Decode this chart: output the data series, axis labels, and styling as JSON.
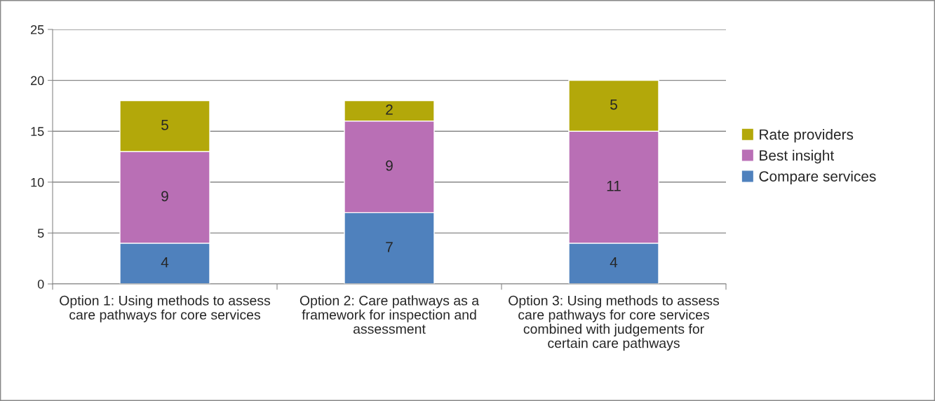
{
  "chart_data": {
    "type": "bar",
    "stacked": true,
    "categories": [
      "Option 1: Using methods to assess care pathways for core services",
      "Option 2: Care pathways as a framework for inspection and assessment",
      "Option 3: Using methods to assess care pathways for core services combined with judgements for certain care pathways"
    ],
    "series": [
      {
        "name": "Compare services",
        "color": "#4f81bd",
        "values": [
          4,
          7,
          4
        ]
      },
      {
        "name": "Best insight",
        "color": "#b96fb5",
        "values": [
          9,
          9,
          11
        ]
      },
      {
        "name": "Rate providers",
        "color": "#b3a80a",
        "values": [
          5,
          2,
          5
        ]
      }
    ],
    "ylim": [
      0,
      25
    ],
    "yticks": [
      0,
      5,
      10,
      15,
      20,
      25
    ],
    "grid": "y",
    "legend": "right",
    "data_labels": true
  }
}
